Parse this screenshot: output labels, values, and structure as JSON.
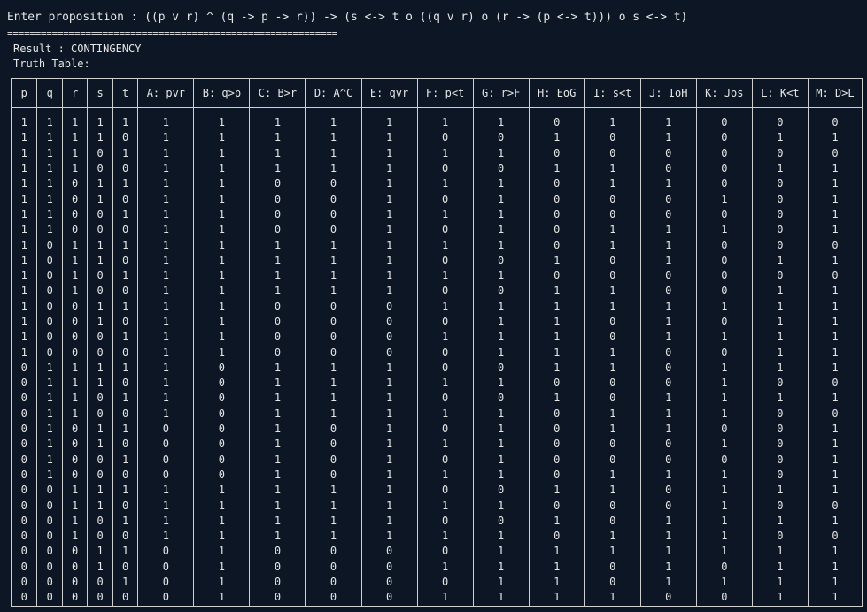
{
  "prompt": "Enter proposition : ((p v r) ^ (q -> p -> r)) -> (s <-> t o ((q v r) o (r -> (p <-> t))) o s <-> t)",
  "separator": "===========================================================",
  "result": "Result : CONTINGENCY",
  "truth_table_label": "Truth Table:",
  "headers": [
    "p",
    "q",
    "r",
    "s",
    "t",
    "A: pvr",
    "B: q>p",
    "C: B>r",
    "D: A^C",
    "E: qvr",
    "F: p<t",
    "G: r>F",
    "H: EoG",
    "I: s<t",
    "J: IoH",
    "K: Jos",
    "L: K<t",
    "M: D>L"
  ],
  "rows": [
    [
      "1",
      "1",
      "1",
      "1",
      "1",
      "1",
      "1",
      "1",
      "1",
      "1",
      "1",
      "1",
      "0",
      "1",
      "1",
      "0",
      "0",
      "0"
    ],
    [
      "1",
      "1",
      "1",
      "1",
      "0",
      "1",
      "1",
      "1",
      "1",
      "1",
      "0",
      "0",
      "1",
      "0",
      "1",
      "0",
      "1",
      "1"
    ],
    [
      "1",
      "1",
      "1",
      "0",
      "1",
      "1",
      "1",
      "1",
      "1",
      "1",
      "1",
      "1",
      "0",
      "0",
      "0",
      "0",
      "0",
      "0"
    ],
    [
      "1",
      "1",
      "1",
      "0",
      "0",
      "1",
      "1",
      "1",
      "1",
      "1",
      "0",
      "0",
      "1",
      "1",
      "0",
      "0",
      "1",
      "1"
    ],
    [
      "1",
      "1",
      "0",
      "1",
      "1",
      "1",
      "1",
      "0",
      "0",
      "1",
      "1",
      "1",
      "0",
      "1",
      "1",
      "0",
      "0",
      "1"
    ],
    [
      "1",
      "1",
      "0",
      "1",
      "0",
      "1",
      "1",
      "0",
      "0",
      "1",
      "0",
      "1",
      "0",
      "0",
      "0",
      "1",
      "0",
      "1"
    ],
    [
      "1",
      "1",
      "0",
      "0",
      "1",
      "1",
      "1",
      "0",
      "0",
      "1",
      "1",
      "1",
      "0",
      "0",
      "0",
      "0",
      "0",
      "1"
    ],
    [
      "1",
      "1",
      "0",
      "0",
      "0",
      "1",
      "1",
      "0",
      "0",
      "1",
      "0",
      "1",
      "0",
      "1",
      "1",
      "1",
      "0",
      "1"
    ],
    [
      "1",
      "0",
      "1",
      "1",
      "1",
      "1",
      "1",
      "1",
      "1",
      "1",
      "1",
      "1",
      "0",
      "1",
      "1",
      "0",
      "0",
      "0"
    ],
    [
      "1",
      "0",
      "1",
      "1",
      "0",
      "1",
      "1",
      "1",
      "1",
      "1",
      "0",
      "0",
      "1",
      "0",
      "1",
      "0",
      "1",
      "1"
    ],
    [
      "1",
      "0",
      "1",
      "0",
      "1",
      "1",
      "1",
      "1",
      "1",
      "1",
      "1",
      "1",
      "0",
      "0",
      "0",
      "0",
      "0",
      "0"
    ],
    [
      "1",
      "0",
      "1",
      "0",
      "0",
      "1",
      "1",
      "1",
      "1",
      "1",
      "0",
      "0",
      "1",
      "1",
      "0",
      "0",
      "1",
      "1"
    ],
    [
      "1",
      "0",
      "0",
      "1",
      "1",
      "1",
      "1",
      "0",
      "0",
      "0",
      "1",
      "1",
      "1",
      "1",
      "1",
      "1",
      "1",
      "1"
    ],
    [
      "1",
      "0",
      "0",
      "1",
      "0",
      "1",
      "1",
      "0",
      "0",
      "0",
      "0",
      "1",
      "1",
      "0",
      "1",
      "0",
      "1",
      "1"
    ],
    [
      "1",
      "0",
      "0",
      "0",
      "1",
      "1",
      "1",
      "0",
      "0",
      "0",
      "1",
      "1",
      "1",
      "0",
      "1",
      "1",
      "1",
      "1"
    ],
    [
      "1",
      "0",
      "0",
      "0",
      "0",
      "1",
      "1",
      "0",
      "0",
      "0",
      "0",
      "1",
      "1",
      "1",
      "0",
      "0",
      "1",
      "1"
    ],
    [
      "0",
      "1",
      "1",
      "1",
      "1",
      "1",
      "0",
      "1",
      "1",
      "1",
      "0",
      "0",
      "1",
      "1",
      "0",
      "1",
      "1",
      "1"
    ],
    [
      "0",
      "1",
      "1",
      "1",
      "0",
      "1",
      "0",
      "1",
      "1",
      "1",
      "1",
      "1",
      "0",
      "0",
      "0",
      "1",
      "0",
      "0"
    ],
    [
      "0",
      "1",
      "1",
      "0",
      "1",
      "1",
      "0",
      "1",
      "1",
      "1",
      "0",
      "0",
      "1",
      "0",
      "1",
      "1",
      "1",
      "1"
    ],
    [
      "0",
      "1",
      "1",
      "0",
      "0",
      "1",
      "0",
      "1",
      "1",
      "1",
      "1",
      "1",
      "0",
      "1",
      "1",
      "1",
      "0",
      "0"
    ],
    [
      "0",
      "1",
      "0",
      "1",
      "1",
      "0",
      "0",
      "1",
      "0",
      "1",
      "0",
      "1",
      "0",
      "1",
      "1",
      "0",
      "0",
      "1"
    ],
    [
      "0",
      "1",
      "0",
      "1",
      "0",
      "0",
      "0",
      "1",
      "0",
      "1",
      "1",
      "1",
      "0",
      "0",
      "0",
      "1",
      "0",
      "1"
    ],
    [
      "0",
      "1",
      "0",
      "0",
      "1",
      "0",
      "0",
      "1",
      "0",
      "1",
      "0",
      "1",
      "0",
      "0",
      "0",
      "0",
      "0",
      "1"
    ],
    [
      "0",
      "1",
      "0",
      "0",
      "0",
      "0",
      "0",
      "1",
      "0",
      "1",
      "1",
      "1",
      "0",
      "1",
      "1",
      "1",
      "0",
      "1"
    ],
    [
      "0",
      "0",
      "1",
      "1",
      "1",
      "1",
      "1",
      "1",
      "1",
      "1",
      "0",
      "0",
      "1",
      "1",
      "0",
      "1",
      "1",
      "1"
    ],
    [
      "0",
      "0",
      "1",
      "1",
      "0",
      "1",
      "1",
      "1",
      "1",
      "1",
      "1",
      "1",
      "0",
      "0",
      "0",
      "1",
      "0",
      "0"
    ],
    [
      "0",
      "0",
      "1",
      "0",
      "1",
      "1",
      "1",
      "1",
      "1",
      "1",
      "0",
      "0",
      "1",
      "0",
      "1",
      "1",
      "1",
      "1"
    ],
    [
      "0",
      "0",
      "1",
      "0",
      "0",
      "1",
      "1",
      "1",
      "1",
      "1",
      "1",
      "1",
      "0",
      "1",
      "1",
      "1",
      "0",
      "0"
    ],
    [
      "0",
      "0",
      "0",
      "1",
      "1",
      "0",
      "1",
      "0",
      "0",
      "0",
      "0",
      "1",
      "1",
      "1",
      "1",
      "1",
      "1",
      "1"
    ],
    [
      "0",
      "0",
      "0",
      "1",
      "0",
      "0",
      "1",
      "0",
      "0",
      "0",
      "1",
      "1",
      "1",
      "0",
      "1",
      "0",
      "1",
      "1"
    ],
    [
      "0",
      "0",
      "0",
      "0",
      "1",
      "0",
      "1",
      "0",
      "0",
      "0",
      "0",
      "1",
      "1",
      "0",
      "1",
      "1",
      "1",
      "1"
    ],
    [
      "0",
      "0",
      "0",
      "0",
      "0",
      "0",
      "1",
      "0",
      "0",
      "0",
      "1",
      "1",
      "1",
      "1",
      "0",
      "0",
      "1",
      "1"
    ]
  ]
}
